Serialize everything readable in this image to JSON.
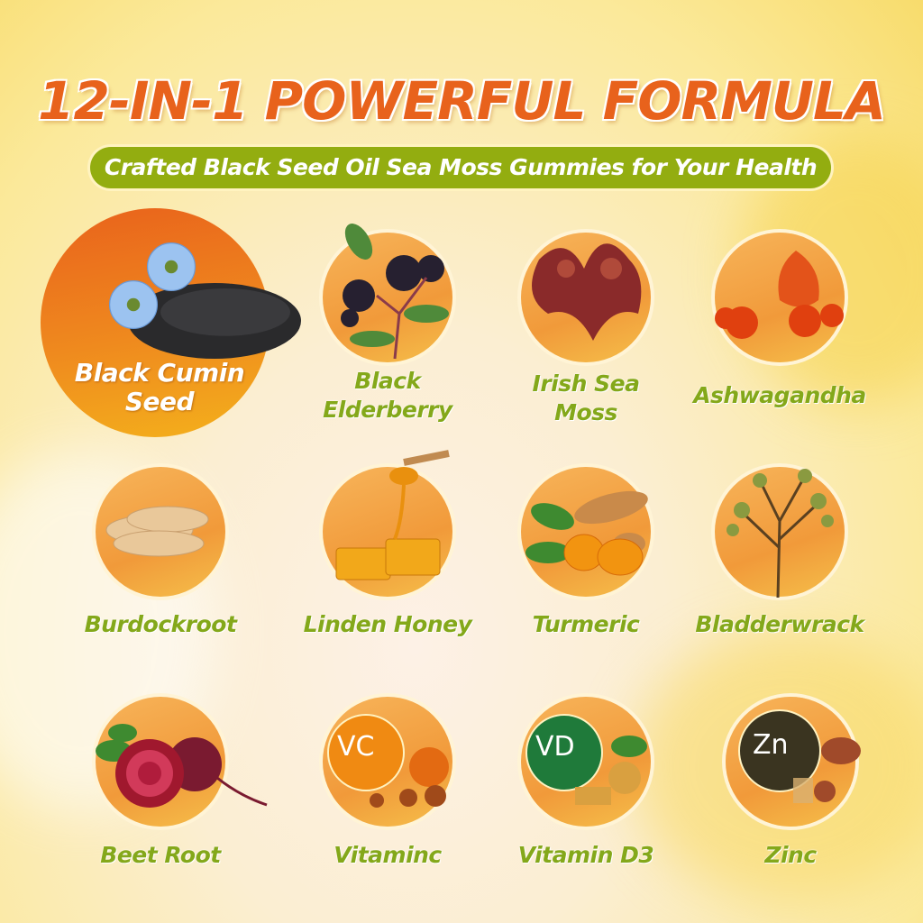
{
  "title": "12-IN-1 POWERFUL FORMULA",
  "subtitle": "Crafted Black Seed Oil Sea Moss Gummies for Your Health",
  "colors": {
    "title": "#e8621c",
    "banner": "#93ad10",
    "label": "#84a81a",
    "circle": "#f19a3a"
  },
  "ingredients": [
    {
      "label": [
        "Black Cumin",
        "Seed"
      ],
      "icon": "black-cumin-seed-icon",
      "featured": true
    },
    {
      "label": [
        "Black",
        "Elderberry"
      ],
      "icon": "elderberry-icon"
    },
    {
      "label": [
        "Irish Sea",
        "Moss"
      ],
      "icon": "sea-moss-icon"
    },
    {
      "label": [
        "Ashwagandha"
      ],
      "icon": "ashwagandha-icon"
    },
    {
      "label": [
        "Burdockroot"
      ],
      "icon": "burdock-root-icon"
    },
    {
      "label": [
        "Linden Honey"
      ],
      "icon": "honey-icon"
    },
    {
      "label": [
        "Turmeric"
      ],
      "icon": "turmeric-icon"
    },
    {
      "label": [
        "Bladderwrack"
      ],
      "icon": "bladderwrack-icon"
    },
    {
      "label": [
        "Beet Root"
      ],
      "icon": "beet-root-icon"
    },
    {
      "label": [
        "Vitaminc"
      ],
      "icon": "vitamin-c-icon",
      "badge": "VC"
    },
    {
      "label": [
        "Vitamin D3"
      ],
      "icon": "vitamin-d3-icon",
      "badge": "VD"
    },
    {
      "label": [
        "Zinc"
      ],
      "icon": "zinc-icon",
      "badge": "Zn"
    }
  ]
}
